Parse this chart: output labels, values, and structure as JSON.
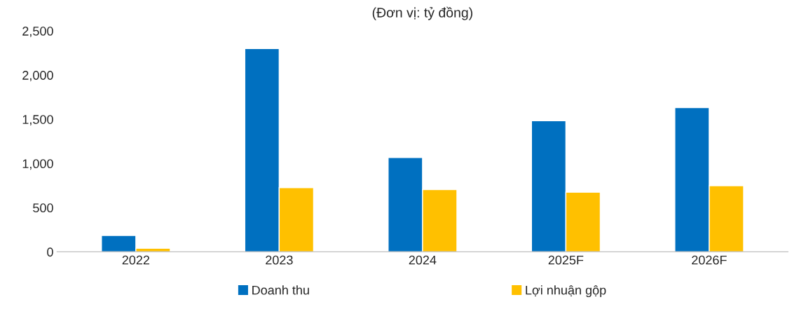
{
  "chart_data": {
    "type": "bar",
    "title": "(Đơn vị: tỷ đồng)",
    "categories": [
      "2022",
      "2023",
      "2024",
      "2025F",
      "2026F"
    ],
    "series": [
      {
        "name": "Doanh thu",
        "color": "#0070c0",
        "values": [
          185,
          2300,
          1068,
          1484,
          1632
        ]
      },
      {
        "name": "Lợi nhuận gộp",
        "color": "#ffc000",
        "values": [
          40,
          727,
          705,
          675,
          749
        ]
      }
    ],
    "ylim": [
      0,
      2500
    ],
    "yticks": [
      {
        "value": 0,
        "label": "0"
      },
      {
        "value": 500,
        "label": "500"
      },
      {
        "value": 1000,
        "label": "1,000"
      },
      {
        "value": 1500,
        "label": "1,500"
      },
      {
        "value": 2000,
        "label": "2,000"
      },
      {
        "value": 2500,
        "label": "2,500"
      }
    ],
    "grid": false,
    "legend": "bottom"
  }
}
